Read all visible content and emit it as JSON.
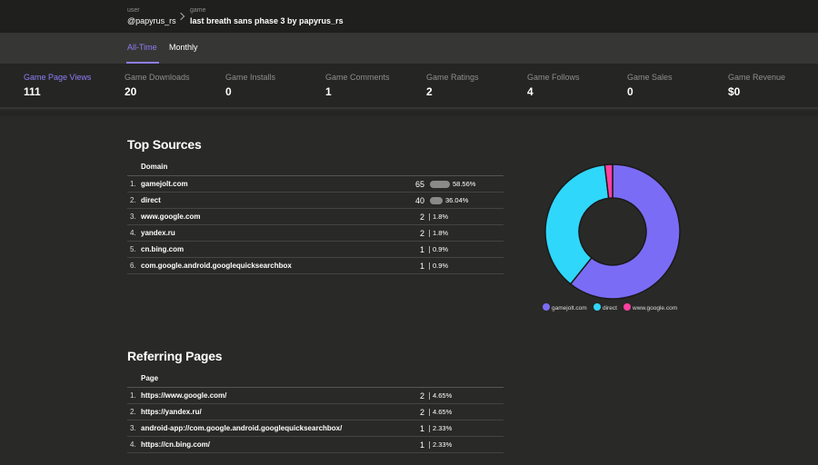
{
  "breadcrumb": {
    "user_label": "user",
    "user_value": "@papyrus_rs",
    "game_label": "game",
    "game_value": "last breath sans phase 3 by papyrus_rs"
  },
  "tabs": [
    {
      "label": "All-Time",
      "active": true
    },
    {
      "label": "Monthly",
      "active": false
    }
  ],
  "stats": [
    {
      "label": "Game Page Views",
      "value": "111",
      "active": true
    },
    {
      "label": "Game Downloads",
      "value": "20"
    },
    {
      "label": "Game Installs",
      "value": "0"
    },
    {
      "label": "Game Comments",
      "value": "1"
    },
    {
      "label": "Game Ratings",
      "value": "2"
    },
    {
      "label": "Game Follows",
      "value": "4"
    },
    {
      "label": "Game Sales",
      "value": "0"
    },
    {
      "label": "Game Revenue",
      "value": "$0"
    }
  ],
  "top_sources": {
    "title": "Top Sources",
    "column": "Domain",
    "rows": [
      {
        "idx": "1.",
        "name": "gamejolt.com",
        "count": "65",
        "pct": "58.56%",
        "fraction": 0.5856
      },
      {
        "idx": "2.",
        "name": "direct",
        "count": "40",
        "pct": "36.04%",
        "fraction": 0.3604
      },
      {
        "idx": "3.",
        "name": "www.google.com",
        "count": "2",
        "pct": "1.8%",
        "fraction": 0.018
      },
      {
        "idx": "4.",
        "name": "yandex.ru",
        "count": "2",
        "pct": "1.8%",
        "fraction": 0.018
      },
      {
        "idx": "5.",
        "name": "cn.bing.com",
        "count": "1",
        "pct": "0.9%",
        "fraction": 0.009
      },
      {
        "idx": "6.",
        "name": "com.google.android.googlequicksearchbox",
        "count": "1",
        "pct": "0.9%",
        "fraction": 0.009
      }
    ]
  },
  "referring_pages": {
    "title": "Referring Pages",
    "column": "Page",
    "rows": [
      {
        "idx": "1.",
        "name": "https://www.google.com/",
        "count": "2",
        "pct": "4.65%",
        "fraction": 0.0465
      },
      {
        "idx": "2.",
        "name": "https://yandex.ru/",
        "count": "2",
        "pct": "4.65%",
        "fraction": 0.0465
      },
      {
        "idx": "3.",
        "name": "android-app://com.google.android.googlequicksearchbox/",
        "count": "1",
        "pct": "2.33%",
        "fraction": 0.0233
      },
      {
        "idx": "4.",
        "name": "https://cn.bing.com/",
        "count": "1",
        "pct": "2.33%",
        "fraction": 0.0233
      }
    ]
  },
  "colors": {
    "accent": "#8d7ff5",
    "gamejolt": "#7b6cf6",
    "direct": "#2fd7fb",
    "google": "#ff3fa0"
  },
  "chart_data": {
    "type": "pie",
    "categories": [
      "gamejolt.com",
      "direct",
      "www.google.com"
    ],
    "values": [
      65,
      40,
      2
    ],
    "legend": "bottom"
  }
}
